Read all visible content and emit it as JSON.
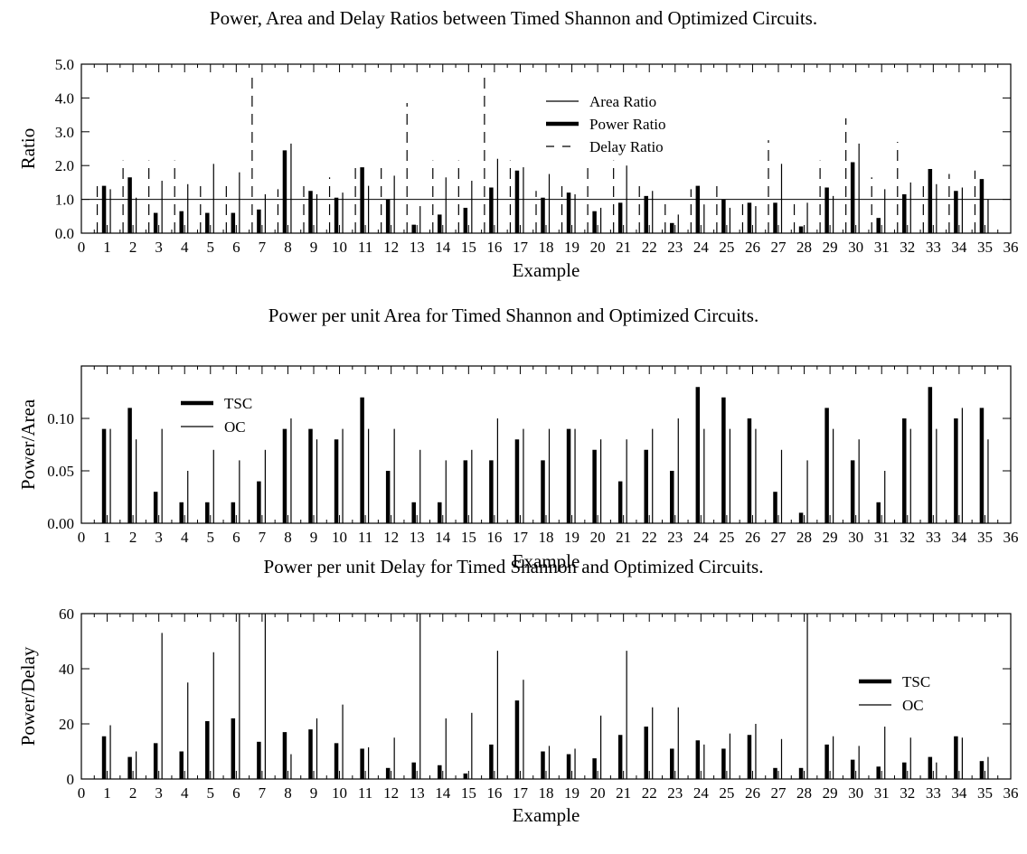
{
  "chart_data": [
    {
      "type": "bar",
      "title": "Power, Area and Delay Ratios between Timed Shannon and Optimized Circuits.",
      "xlabel": "Example",
      "ylabel": "Ratio",
      "xlim": [
        0,
        36
      ],
      "ylim": [
        0,
        5
      ],
      "yticks": [
        "0.0",
        "1.0",
        "2.0",
        "3.0",
        "4.0",
        "5.0"
      ],
      "reference_line": 1.0,
      "legend": {
        "position": "top-center",
        "entries": [
          "Area Ratio",
          "Power Ratio",
          "Delay Ratio"
        ]
      },
      "categories": [
        "1",
        "2",
        "3",
        "4",
        "5",
        "6",
        "7",
        "8",
        "9",
        "10",
        "11",
        "12",
        "13",
        "14",
        "15",
        "16",
        "17",
        "18",
        "19",
        "20",
        "21",
        "22",
        "23",
        "24",
        "25",
        "26",
        "27",
        "28",
        "29",
        "30",
        "31",
        "32",
        "33",
        "34",
        "35"
      ],
      "series": [
        {
          "name": "Area Ratio",
          "style": "thin",
          "values": [
            1.3,
            1.05,
            1.55,
            1.45,
            2.05,
            1.8,
            1.15,
            2.65,
            1.15,
            1.2,
            1.4,
            1.7,
            0.8,
            1.65,
            1.55,
            2.2,
            1.95,
            1.75,
            1.15,
            0.75,
            2.0,
            1.25,
            0.55,
            0.85,
            0.75,
            0.8,
            2.05,
            0.9,
            1.1,
            2.65,
            1.3,
            1.5,
            1.45,
            1.35,
            1.0
          ]
        },
        {
          "name": "Power Ratio",
          "style": "thick",
          "values": [
            1.4,
            1.65,
            0.6,
            0.65,
            0.6,
            0.6,
            0.7,
            2.45,
            1.25,
            1.05,
            1.95,
            1.0,
            0.25,
            0.55,
            0.75,
            1.35,
            1.85,
            1.05,
            1.2,
            0.65,
            0.9,
            1.1,
            0.3,
            1.4,
            1.0,
            0.9,
            0.9,
            0.2,
            1.35,
            2.1,
            0.45,
            1.15,
            1.9,
            1.25,
            1.6
          ]
        },
        {
          "name": "Delay Ratio",
          "style": "dashed",
          "values": [
            1.6,
            2.15,
            2.15,
            2.15,
            1.4,
            1.6,
            4.8,
            1.3,
            1.55,
            1.65,
            2.1,
            2.05,
            3.85,
            2.15,
            2.15,
            4.75,
            2.15,
            1.25,
            1.45,
            2.05,
            2.15,
            1.4,
            1.0,
            1.3,
            1.5,
            1.0,
            2.75,
            1.0,
            2.15,
            3.4,
            1.65,
            2.7,
            1.45,
            1.75,
            1.85
          ]
        }
      ]
    },
    {
      "type": "bar",
      "title": "Power per unit Area for Timed Shannon and Optimized Circuits.",
      "xlabel": "Example",
      "ylabel": "Power/Area",
      "xlim": [
        0,
        36
      ],
      "ylim": [
        0,
        0.15
      ],
      "yticks": [
        "0.00",
        "0.05",
        "0.10"
      ],
      "legend": {
        "position": "top-left",
        "entries": [
          "TSC",
          "OC"
        ]
      },
      "categories": [
        "1",
        "2",
        "3",
        "4",
        "5",
        "6",
        "7",
        "8",
        "9",
        "10",
        "11",
        "12",
        "13",
        "14",
        "15",
        "16",
        "17",
        "18",
        "19",
        "20",
        "21",
        "22",
        "23",
        "24",
        "25",
        "26",
        "27",
        "28",
        "29",
        "30",
        "31",
        "32",
        "33",
        "34",
        "35"
      ],
      "series": [
        {
          "name": "TSC",
          "style": "thick",
          "values": [
            0.09,
            0.11,
            0.03,
            0.02,
            0.02,
            0.02,
            0.04,
            0.09,
            0.09,
            0.08,
            0.12,
            0.05,
            0.02,
            0.02,
            0.06,
            0.06,
            0.08,
            0.06,
            0.09,
            0.07,
            0.04,
            0.07,
            0.05,
            0.13,
            0.12,
            0.1,
            0.03,
            0.01,
            0.11,
            0.06,
            0.02,
            0.1,
            0.13,
            0.1,
            0.11
          ]
        },
        {
          "name": "OC",
          "style": "thin",
          "values": [
            0.09,
            0.08,
            0.09,
            0.05,
            0.07,
            0.06,
            0.07,
            0.1,
            0.08,
            0.09,
            0.09,
            0.09,
            0.07,
            0.06,
            0.07,
            0.1,
            0.09,
            0.09,
            0.09,
            0.08,
            0.08,
            0.09,
            0.1,
            0.09,
            0.09,
            0.09,
            0.07,
            0.06,
            0.09,
            0.08,
            0.05,
            0.09,
            0.09,
            0.11,
            0.08
          ]
        }
      ]
    },
    {
      "type": "bar",
      "title": "Power per unit Delay for Timed Shannon and Optimized Circuits.",
      "xlabel": "Example",
      "ylabel": "Power/Delay",
      "xlim": [
        0,
        36
      ],
      "ylim": [
        0,
        60
      ],
      "yticks": [
        "0",
        "20",
        "40",
        "60"
      ],
      "legend": {
        "position": "top-right",
        "entries": [
          "TSC",
          "OC"
        ]
      },
      "categories": [
        "1",
        "2",
        "3",
        "4",
        "5",
        "6",
        "7",
        "8",
        "9",
        "10",
        "11",
        "12",
        "13",
        "14",
        "15",
        "16",
        "17",
        "18",
        "19",
        "20",
        "21",
        "22",
        "23",
        "24",
        "25",
        "26",
        "27",
        "28",
        "29",
        "30",
        "31",
        "32",
        "33",
        "34",
        "35"
      ],
      "series": [
        {
          "name": "TSC",
          "style": "thick",
          "values": [
            15.5,
            8,
            13,
            10,
            21,
            22,
            13.5,
            17,
            18,
            13,
            11,
            4,
            6,
            5,
            2,
            12.5,
            28.5,
            10,
            9,
            7.5,
            16,
            19,
            11,
            14,
            11,
            16,
            4,
            4,
            12.5,
            7,
            4.5,
            6,
            8,
            15.5,
            6.5
          ]
        },
        {
          "name": "OC",
          "style": "thin",
          "values": [
            19.5,
            10,
            53,
            35,
            46,
            60,
            60,
            9,
            22,
            27,
            11.5,
            15,
            60,
            22,
            24,
            46.5,
            36,
            12,
            11,
            23,
            46.5,
            26,
            26,
            12.5,
            16.5,
            20,
            14.5,
            60,
            15.5,
            12,
            19,
            15,
            6,
            15,
            8
          ]
        }
      ]
    }
  ]
}
